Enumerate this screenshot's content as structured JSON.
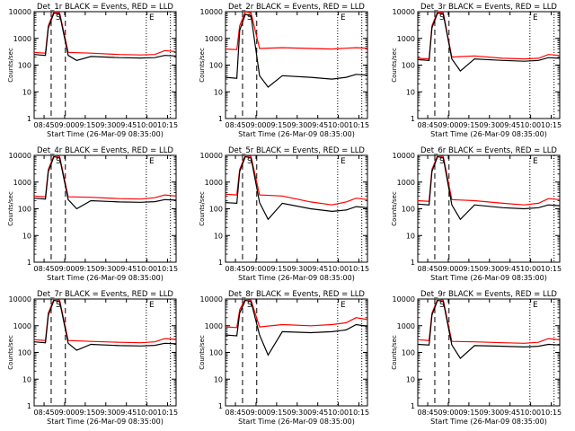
{
  "chart_data": [
    {
      "type": "line",
      "title": "Det_1r BLACK = Events, RED = LLD",
      "xlabel": "Start Time (26-Mar-09 08:35:00)",
      "ylabel": "Counts/sec",
      "x_ticks": [
        "08:45",
        "09:00",
        "09:15",
        "09:30",
        "09:45",
        "10:00",
        "10:15"
      ],
      "y_ticks": [
        "1",
        "10",
        "100",
        "1000",
        "10000"
      ],
      "y_scale": "log",
      "ylim": [
        1,
        10000
      ],
      "markers": [
        {
          "label": "S",
          "style": "dashed"
        },
        {
          "label": "E",
          "style": "dotted"
        }
      ],
      "series": [
        {
          "color": "#ff0000",
          "x": [
            0,
            8,
            10,
            14,
            18,
            24,
            40,
            60,
            75,
            85,
            92,
            100
          ],
          "y": [
            300,
            280,
            3000,
            10000,
            9000,
            300,
            280,
            250,
            240,
            250,
            350,
            320
          ]
        },
        {
          "color": "#000000",
          "x": [
            0,
            8,
            10,
            14,
            18,
            24,
            30,
            40,
            60,
            75,
            85,
            92,
            100
          ],
          "y": [
            250,
            230,
            2500,
            9000,
            8000,
            230,
            150,
            210,
            190,
            185,
            190,
            230,
            220
          ]
        }
      ]
    },
    {
      "type": "line",
      "title": "Det_2r BLACK = Events, RED = LLD",
      "xlabel": "Start Time (26-Mar-09 08:35:00)",
      "ylabel": "Counts/sec",
      "x_ticks": [
        "08:45",
        "09:00",
        "09:15",
        "09:30",
        "09:45",
        "10:00",
        "10:15"
      ],
      "y_ticks": [
        "1",
        "10",
        "100",
        "1000",
        "10000"
      ],
      "y_scale": "log",
      "ylim": [
        1,
        10000
      ],
      "markers": [
        {
          "label": "S",
          "style": "dashed"
        },
        {
          "label": "E",
          "style": "dotted"
        }
      ],
      "series": [
        {
          "color": "#ff0000",
          "x": [
            0,
            8,
            10,
            14,
            18,
            24,
            40,
            60,
            75,
            85,
            92,
            100
          ],
          "y": [
            400,
            380,
            3000,
            10000,
            9000,
            420,
            450,
            420,
            400,
            430,
            450,
            430
          ]
        },
        {
          "color": "#000000",
          "x": [
            0,
            8,
            10,
            14,
            18,
            24,
            30,
            40,
            60,
            75,
            85,
            92,
            100
          ],
          "y": [
            35,
            32,
            2000,
            8000,
            7000,
            40,
            15,
            40,
            35,
            30,
            35,
            45,
            42
          ]
        }
      ]
    },
    {
      "type": "line",
      "title": "Det_3r BLACK = Events, RED = LLD",
      "xlabel": "Start Time (26-Mar-09 08:35:00)",
      "ylabel": "Counts/sec",
      "x_ticks": [
        "08:45",
        "09:00",
        "09:15",
        "09:30",
        "09:45",
        "10:00",
        "10:15"
      ],
      "y_ticks": [
        "1",
        "10",
        "100",
        "1000",
        "10000"
      ],
      "y_scale": "log",
      "ylim": [
        1,
        10000
      ],
      "markers": [
        {
          "label": "S",
          "style": "dashed"
        },
        {
          "label": "E",
          "style": "dotted"
        }
      ],
      "series": [
        {
          "color": "#ff0000",
          "x": [
            0,
            8,
            10,
            14,
            18,
            24,
            40,
            60,
            75,
            85,
            92,
            100
          ],
          "y": [
            180,
            170,
            3000,
            10000,
            9000,
            200,
            220,
            180,
            170,
            180,
            250,
            230
          ]
        },
        {
          "color": "#000000",
          "x": [
            0,
            8,
            10,
            14,
            18,
            24,
            30,
            40,
            60,
            75,
            85,
            92,
            100
          ],
          "y": [
            160,
            150,
            2500,
            9000,
            8000,
            170,
            60,
            170,
            150,
            140,
            150,
            190,
            180
          ]
        }
      ]
    },
    {
      "type": "line",
      "title": "Det_4r BLACK = Events, RED = LLD",
      "xlabel": "Start Time (26-Mar-09 08:35:00)",
      "ylabel": "Counts/sec",
      "x_ticks": [
        "08:45",
        "09:00",
        "09:15",
        "09:30",
        "09:45",
        "10:00",
        "10:15"
      ],
      "y_ticks": [
        "1",
        "10",
        "100",
        "1000",
        "10000"
      ],
      "y_scale": "log",
      "ylim": [
        1,
        10000
      ],
      "markers": [
        {
          "label": "S",
          "style": "dashed"
        },
        {
          "label": "E",
          "style": "dotted"
        }
      ],
      "series": [
        {
          "color": "#ff0000",
          "x": [
            0,
            8,
            10,
            14,
            18,
            24,
            40,
            60,
            75,
            85,
            92,
            100
          ],
          "y": [
            300,
            280,
            3000,
            10000,
            9000,
            280,
            270,
            240,
            230,
            260,
            330,
            300
          ]
        },
        {
          "color": "#000000",
          "x": [
            0,
            8,
            10,
            14,
            18,
            24,
            30,
            40,
            60,
            75,
            85,
            92,
            100
          ],
          "y": [
            250,
            230,
            2500,
            9000,
            8000,
            220,
            100,
            200,
            180,
            175,
            185,
            220,
            210
          ]
        }
      ]
    },
    {
      "type": "line",
      "title": "Det_5r BLACK = Events, RED = LLD",
      "xlabel": "Start Time (26-Mar-09 08:35:00)",
      "ylabel": "Counts/sec",
      "x_ticks": [
        "08:45",
        "09:00",
        "09:15",
        "09:30",
        "09:45",
        "10:00",
        "10:15"
      ],
      "y_ticks": [
        "1",
        "10",
        "100",
        "1000",
        "10000"
      ],
      "y_scale": "log",
      "ylim": [
        1,
        10000
      ],
      "markers": [
        {
          "label": "S",
          "style": "dashed"
        },
        {
          "label": "E",
          "style": "dotted"
        }
      ],
      "series": [
        {
          "color": "#ff0000",
          "x": [
            0,
            8,
            10,
            14,
            18,
            24,
            40,
            60,
            75,
            85,
            92,
            100
          ],
          "y": [
            350,
            330,
            3000,
            10000,
            9000,
            330,
            300,
            180,
            140,
            180,
            250,
            220
          ]
        },
        {
          "color": "#000000",
          "x": [
            0,
            8,
            10,
            14,
            18,
            24,
            30,
            40,
            60,
            75,
            85,
            92,
            100
          ],
          "y": [
            170,
            160,
            2500,
            9000,
            8000,
            170,
            40,
            160,
            100,
            80,
            90,
            120,
            110
          ]
        }
      ]
    },
    {
      "type": "line",
      "title": "Det_6r BLACK = Events, RED = LLD",
      "xlabel": "Start Time (26-Mar-09 08:35:00)",
      "ylabel": "Counts/sec",
      "x_ticks": [
        "08:45",
        "09:00",
        "09:15",
        "09:30",
        "09:45",
        "10:00",
        "10:15"
      ],
      "y_ticks": [
        "1",
        "10",
        "100",
        "1000",
        "10000"
      ],
      "y_scale": "log",
      "ylim": [
        1,
        10000
      ],
      "markers": [
        {
          "label": "S",
          "style": "dashed"
        },
        {
          "label": "E",
          "style": "dotted"
        }
      ],
      "series": [
        {
          "color": "#ff0000",
          "x": [
            0,
            8,
            10,
            14,
            18,
            24,
            40,
            60,
            75,
            85,
            92,
            100
          ],
          "y": [
            200,
            190,
            3000,
            10000,
            9000,
            220,
            200,
            160,
            140,
            160,
            240,
            220
          ]
        },
        {
          "color": "#000000",
          "x": [
            0,
            8,
            10,
            14,
            18,
            24,
            30,
            40,
            60,
            75,
            85,
            92,
            100
          ],
          "y": [
            150,
            140,
            2500,
            9000,
            8000,
            140,
            40,
            140,
            110,
            100,
            110,
            140,
            130
          ]
        }
      ]
    },
    {
      "type": "line",
      "title": "Det_7r BLACK = Events, RED = LLD",
      "xlabel": "Start Time (26-Mar-09 08:35:00)",
      "ylabel": "Counts/sec",
      "x_ticks": [
        "08:45",
        "09:00",
        "09:15",
        "09:30",
        "09:45",
        "10:00",
        "10:15"
      ],
      "y_ticks": [
        "1",
        "10",
        "100",
        "1000",
        "10000"
      ],
      "y_scale": "log",
      "ylim": [
        1,
        10000
      ],
      "markers": [
        {
          "label": "S",
          "style": "dashed"
        },
        {
          "label": "E",
          "style": "dotted"
        }
      ],
      "series": [
        {
          "color": "#ff0000",
          "x": [
            0,
            8,
            10,
            14,
            18,
            24,
            40,
            60,
            75,
            85,
            92,
            100
          ],
          "y": [
            300,
            280,
            3000,
            10000,
            9000,
            280,
            260,
            240,
            230,
            250,
            330,
            310
          ]
        },
        {
          "color": "#000000",
          "x": [
            0,
            8,
            10,
            14,
            18,
            24,
            30,
            40,
            60,
            75,
            85,
            92,
            100
          ],
          "y": [
            250,
            230,
            2500,
            9000,
            8000,
            220,
            120,
            200,
            180,
            175,
            185,
            220,
            210
          ]
        }
      ]
    },
    {
      "type": "line",
      "title": "Det_8r BLACK = Events, RED = LLD",
      "xlabel": "Start Time (26-Mar-09 08:35:00)",
      "ylabel": "Counts/sec",
      "x_ticks": [
        "08:45",
        "09:00",
        "09:15",
        "09:30",
        "09:45",
        "10:00",
        "10:15"
      ],
      "y_ticks": [
        "1",
        "10",
        "100",
        "1000",
        "10000"
      ],
      "y_scale": "log",
      "ylim": [
        1,
        10000
      ],
      "markers": [
        {
          "label": "S",
          "style": "dashed"
        },
        {
          "label": "E",
          "style": "dotted"
        }
      ],
      "series": [
        {
          "color": "#ff0000",
          "x": [
            0,
            8,
            10,
            14,
            18,
            24,
            40,
            60,
            75,
            85,
            92,
            100
          ],
          "y": [
            900,
            850,
            4000,
            10000,
            9000,
            900,
            1100,
            1000,
            1100,
            1300,
            2000,
            1700
          ]
        },
        {
          "color": "#000000",
          "x": [
            0,
            8,
            10,
            14,
            18,
            24,
            30,
            40,
            60,
            75,
            85,
            92,
            100
          ],
          "y": [
            450,
            420,
            3000,
            9000,
            8000,
            450,
            80,
            600,
            550,
            600,
            700,
            1100,
            950
          ]
        }
      ]
    },
    {
      "type": "line",
      "title": "Det_9r BLACK = Events, RED = LLD",
      "xlabel": "Start Time (26-Mar-09 08:35:00)",
      "ylabel": "Counts/sec",
      "x_ticks": [
        "08:45",
        "09:00",
        "09:15",
        "09:30",
        "09:45",
        "10:00",
        "10:15"
      ],
      "y_ticks": [
        "1",
        "10",
        "100",
        "1000",
        "10000"
      ],
      "y_scale": "log",
      "ylim": [
        1,
        10000
      ],
      "markers": [
        {
          "label": "S",
          "style": "dashed"
        },
        {
          "label": "E",
          "style": "dotted"
        }
      ],
      "series": [
        {
          "color": "#ff0000",
          "x": [
            0,
            8,
            10,
            14,
            18,
            24,
            40,
            60,
            75,
            85,
            92,
            100
          ],
          "y": [
            300,
            280,
            3000,
            10000,
            9000,
            260,
            250,
            230,
            220,
            240,
            330,
            300
          ]
        },
        {
          "color": "#000000",
          "x": [
            0,
            8,
            10,
            14,
            18,
            24,
            30,
            40,
            60,
            75,
            85,
            92,
            100
          ],
          "y": [
            200,
            190,
            2500,
            9000,
            8000,
            190,
            60,
            180,
            170,
            160,
            170,
            200,
            190
          ]
        }
      ]
    }
  ]
}
